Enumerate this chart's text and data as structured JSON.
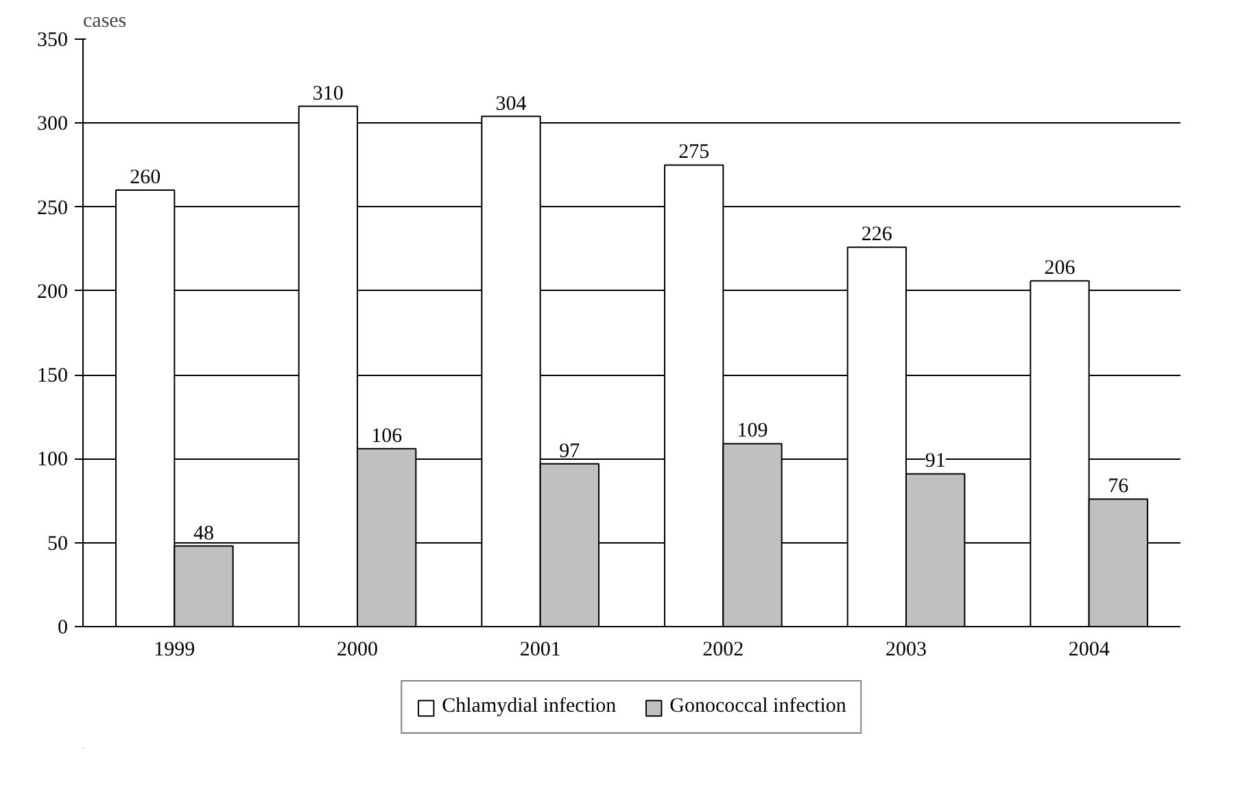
{
  "chart_data": {
    "type": "bar",
    "ylabel": "cases",
    "categories": [
      "1999",
      "2000",
      "2001",
      "2002",
      "2003",
      "2004"
    ],
    "series": [
      {
        "name": "Chlamydial infection",
        "color": "#ffffff",
        "values": [
          260,
          310,
          304,
          275,
          226,
          206
        ]
      },
      {
        "name": "Gonococcal infection",
        "color": "#c0c0c0",
        "values": [
          48,
          106,
          97,
          109,
          91,
          76
        ]
      }
    ],
    "ylim": [
      0,
      350
    ],
    "yticks": [
      0,
      50,
      100,
      150,
      200,
      250,
      300,
      350
    ],
    "grid": "y",
    "legend": "bottom",
    "data_labels": true
  }
}
